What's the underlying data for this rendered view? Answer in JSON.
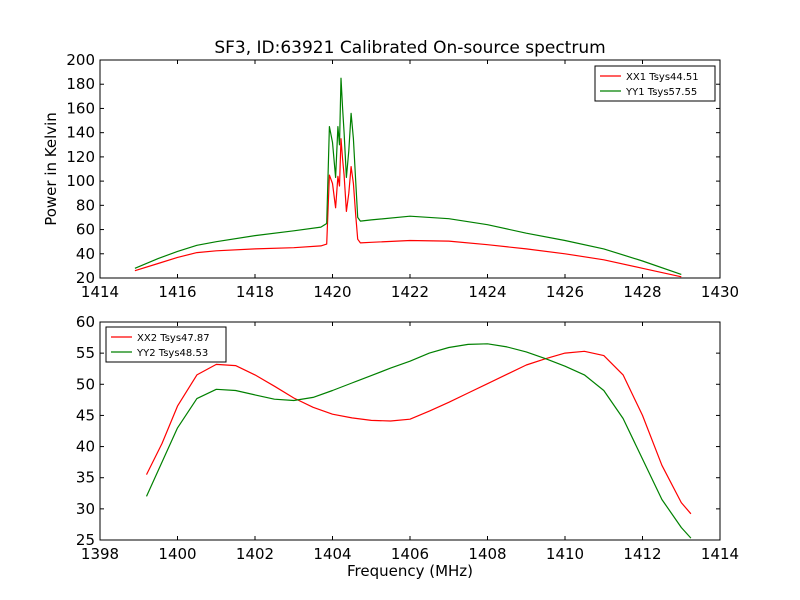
{
  "figure": {
    "title": "SF3, ID:63921 Calibrated On-source spectrum"
  },
  "chart_data": [
    {
      "type": "line",
      "title": "SF3, ID:63921 Calibrated On-source spectrum",
      "xlabel": "",
      "ylabel": "Power in Kelvin",
      "xlim": [
        1414,
        1430
      ],
      "ylim": [
        20,
        200
      ],
      "xticks": [
        "1414",
        "1416",
        "1418",
        "1420",
        "1422",
        "1424",
        "1426",
        "1428",
        "1430"
      ],
      "yticks": [
        "20",
        "40",
        "60",
        "80",
        "100",
        "120",
        "140",
        "160",
        "180",
        "200"
      ],
      "grid": false,
      "legend_position": "top-right",
      "series": [
        {
          "name": "XX1 Tsys44.51",
          "color": "#ff0000",
          "x": [
            1414.9,
            1415.5,
            1416.0,
            1416.5,
            1417.0,
            1418.0,
            1419.0,
            1419.7,
            1419.85,
            1419.92,
            1420.0,
            1420.08,
            1420.14,
            1420.18,
            1420.22,
            1420.26,
            1420.3,
            1420.36,
            1420.42,
            1420.48,
            1420.54,
            1420.6,
            1420.65,
            1420.72,
            1421.0,
            1422.0,
            1423.0,
            1424.0,
            1425.0,
            1426.0,
            1427.0,
            1428.0,
            1429.0
          ],
          "y": [
            26,
            32,
            37,
            41,
            42.5,
            44,
            45,
            46.5,
            48,
            105,
            98,
            78,
            104,
            96,
            135,
            118,
            105,
            75,
            90,
            112,
            98,
            72,
            52,
            49,
            49.5,
            51,
            50.5,
            47.5,
            44,
            40,
            35,
            28,
            21
          ]
        },
        {
          "name": "YY1 Tsys57.55",
          "color": "#008000",
          "x": [
            1414.9,
            1415.5,
            1416.0,
            1416.5,
            1417.0,
            1418.0,
            1419.0,
            1419.7,
            1419.85,
            1419.92,
            1420.0,
            1420.08,
            1420.14,
            1420.18,
            1420.22,
            1420.26,
            1420.3,
            1420.36,
            1420.42,
            1420.48,
            1420.54,
            1420.6,
            1420.65,
            1420.72,
            1421.0,
            1422.0,
            1423.0,
            1424.0,
            1425.0,
            1426.0,
            1427.0,
            1428.0,
            1429.0
          ],
          "y": [
            28,
            36,
            42,
            47,
            50,
            55,
            59,
            62,
            65,
            145,
            132,
            103,
            145,
            130,
            185,
            160,
            140,
            103,
            125,
            156,
            135,
            100,
            70,
            67,
            68,
            71,
            69,
            64,
            57,
            51,
            44,
            34,
            23
          ]
        }
      ]
    },
    {
      "type": "line",
      "title": "",
      "xlabel": "Frequency (MHz)",
      "ylabel": "",
      "xlim": [
        1398,
        1414
      ],
      "ylim": [
        25,
        60
      ],
      "xticks": [
        "1398",
        "1400",
        "1402",
        "1404",
        "1406",
        "1408",
        "1410",
        "1412",
        "1414"
      ],
      "yticks": [
        "25",
        "30",
        "35",
        "40",
        "45",
        "50",
        "55",
        "60"
      ],
      "grid": false,
      "legend_position": "top-left",
      "series": [
        {
          "name": "XX2 Tsys47.87",
          "color": "#ff0000",
          "x": [
            1399.2,
            1399.6,
            1400.0,
            1400.5,
            1401.0,
            1401.5,
            1402.0,
            1402.5,
            1403.0,
            1403.5,
            1404.0,
            1404.5,
            1405.0,
            1405.5,
            1406.0,
            1406.5,
            1407.0,
            1407.5,
            1408.0,
            1408.5,
            1409.0,
            1409.5,
            1410.0,
            1410.5,
            1411.0,
            1411.5,
            1412.0,
            1412.5,
            1413.0,
            1413.25
          ],
          "y": [
            35.5,
            40.5,
            46.5,
            51.5,
            53.2,
            53.0,
            51.5,
            49.7,
            47.8,
            46.3,
            45.2,
            44.6,
            44.2,
            44.1,
            44.4,
            45.7,
            47.1,
            48.6,
            50.1,
            51.6,
            53.1,
            54.1,
            55.0,
            55.3,
            54.6,
            51.5,
            45.0,
            37.0,
            31.0,
            29.2
          ]
        },
        {
          "name": "YY2 Tsys48.53",
          "color": "#008000",
          "x": [
            1399.2,
            1399.6,
            1400.0,
            1400.5,
            1401.0,
            1401.5,
            1402.0,
            1402.5,
            1403.0,
            1403.5,
            1404.0,
            1404.5,
            1405.0,
            1405.5,
            1406.0,
            1406.5,
            1407.0,
            1407.5,
            1408.0,
            1408.5,
            1409.0,
            1409.5,
            1410.0,
            1410.5,
            1411.0,
            1411.5,
            1412.0,
            1412.5,
            1413.0,
            1413.25
          ],
          "y": [
            32.0,
            37.5,
            43.0,
            47.7,
            49.2,
            49.0,
            48.3,
            47.6,
            47.4,
            47.9,
            49.0,
            50.2,
            51.4,
            52.6,
            53.7,
            55.0,
            55.9,
            56.4,
            56.5,
            56.0,
            55.2,
            54.1,
            52.9,
            51.5,
            49.0,
            44.5,
            38.0,
            31.5,
            27.0,
            25.3
          ]
        }
      ]
    }
  ]
}
